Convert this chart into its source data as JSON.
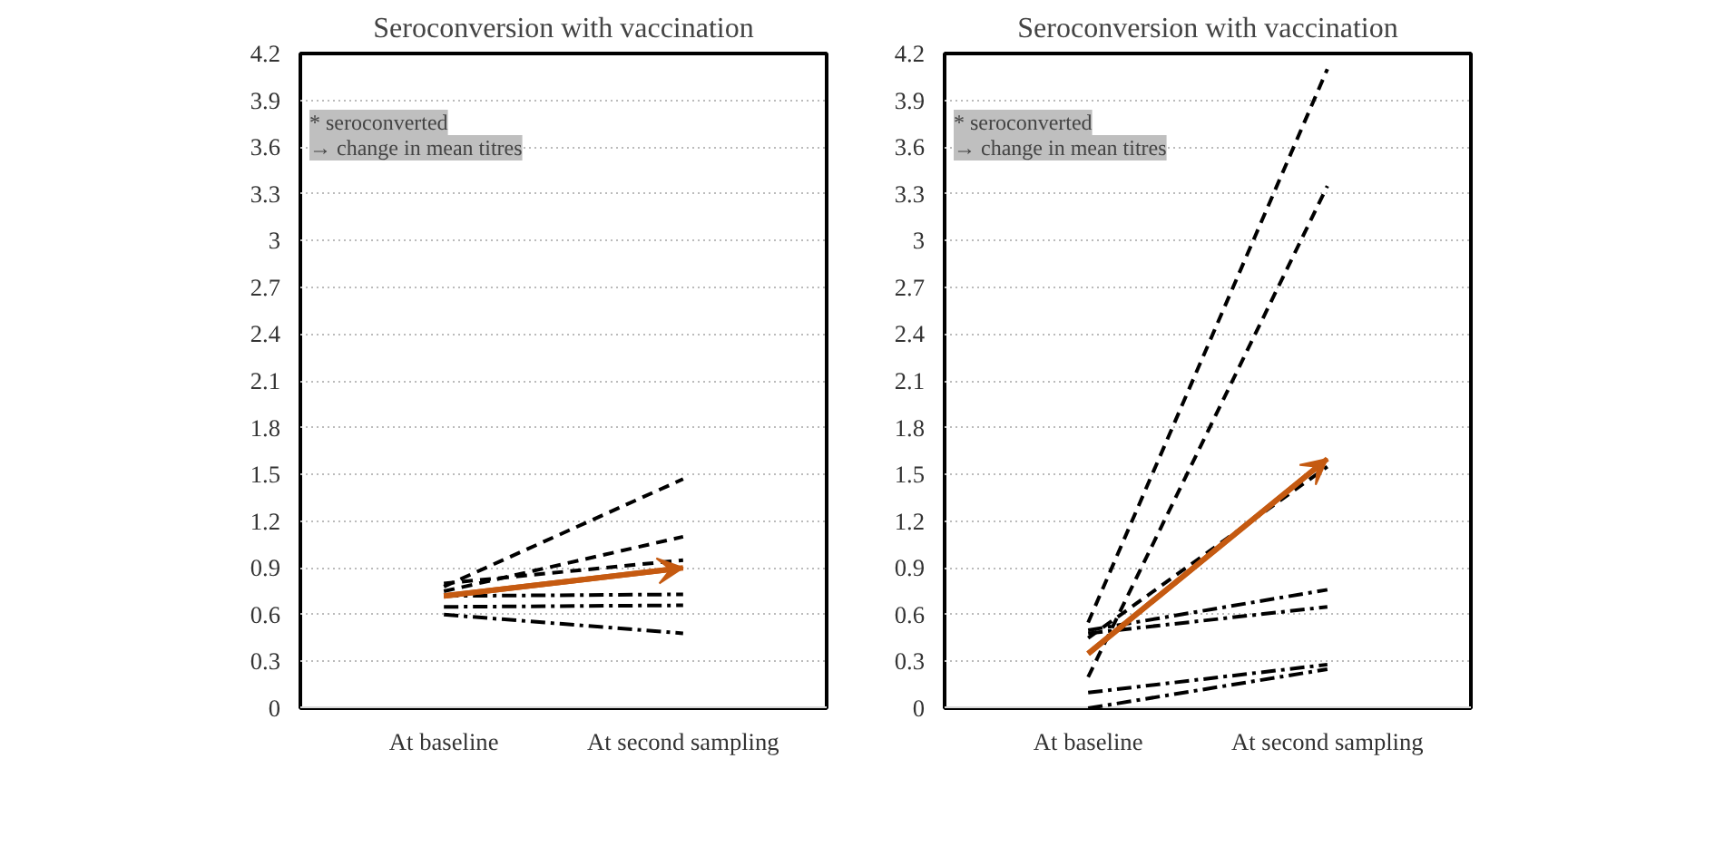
{
  "chart_data": [
    {
      "type": "line",
      "title": "Seroconversion with vaccination",
      "categories": [
        "At baseline",
        "At second sampling"
      ],
      "ylim": [
        0,
        4.2
      ],
      "yticks": [
        0,
        0.3,
        0.6,
        0.9,
        1.2,
        1.5,
        1.8,
        2.1,
        2.4,
        2.7,
        3,
        3.3,
        3.6,
        3.9,
        4.2
      ],
      "grid": "y",
      "annotations": [
        "* seroconverted",
        "→ change in mean titres"
      ],
      "series": [
        {
          "color": "#000000",
          "line_style": "dashed",
          "values": [
            0.78,
            1.47
          ]
        },
        {
          "color": "#000000",
          "line_style": "dashed",
          "values": [
            0.75,
            1.1
          ]
        },
        {
          "color": "#000000",
          "line_style": "dashed",
          "values": [
            0.8,
            0.95
          ]
        },
        {
          "color": "#000000",
          "line_style": "dashdot",
          "values": [
            0.72,
            0.73
          ]
        },
        {
          "color": "#000000",
          "line_style": "dashdot",
          "values": [
            0.65,
            0.66
          ]
        },
        {
          "color": "#000000",
          "line_style": "dashdot",
          "values": [
            0.6,
            0.48
          ]
        },
        {
          "color": "#c55a11",
          "line_style": "solid",
          "values": [
            0.72,
            0.9
          ]
        }
      ]
    },
    {
      "type": "line",
      "title": "Seroconversion with vaccination",
      "categories": [
        "At baseline",
        "At second sampling"
      ],
      "ylim": [
        0,
        4.2
      ],
      "yticks": [
        0,
        0.3,
        0.6,
        0.9,
        1.2,
        1.5,
        1.8,
        2.1,
        2.4,
        2.7,
        3,
        3.3,
        3.6,
        3.9,
        4.2
      ],
      "grid": "y",
      "annotations": [
        "* seroconverted",
        "→ change in mean titres"
      ],
      "series": [
        {
          "color": "#000000",
          "line_style": "dashed",
          "values": [
            0.55,
            4.1
          ]
        },
        {
          "color": "#000000",
          "line_style": "dashed",
          "values": [
            0.2,
            3.35
          ]
        },
        {
          "color": "#000000",
          "line_style": "dashed",
          "values": [
            0.45,
            1.55
          ]
        },
        {
          "color": "#000000",
          "line_style": "dashdot",
          "values": [
            0.5,
            0.76
          ]
        },
        {
          "color": "#000000",
          "line_style": "dashdot",
          "values": [
            0.48,
            0.65
          ]
        },
        {
          "color": "#000000",
          "line_style": "dashdot",
          "values": [
            0.1,
            0.28
          ]
        },
        {
          "color": "#000000",
          "line_style": "dashdot",
          "values": [
            0.0,
            0.25
          ]
        },
        {
          "color": "#c55a11",
          "line_style": "solid",
          "values": [
            0.35,
            1.6
          ]
        }
      ]
    }
  ]
}
